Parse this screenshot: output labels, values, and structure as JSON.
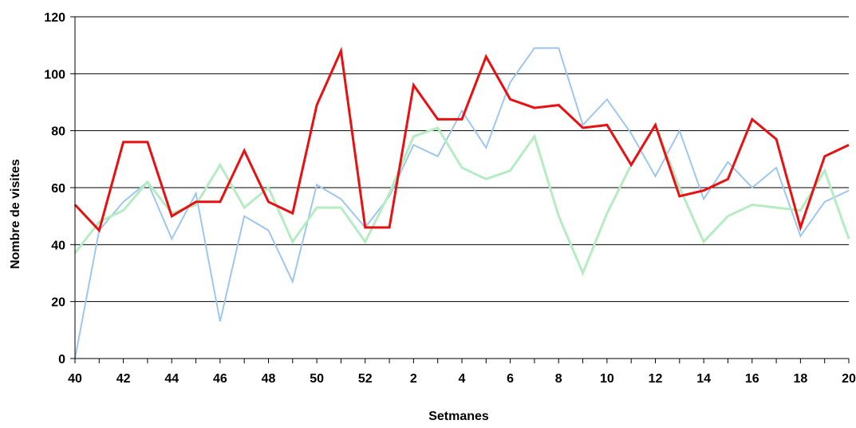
{
  "chart_data": {
    "type": "line",
    "title": "",
    "xlabel": "Setmanes",
    "ylabel": "Nombre de visites",
    "ylim": [
      0,
      120
    ],
    "yticks": [
      0,
      20,
      40,
      60,
      80,
      100,
      120
    ],
    "grid": "horizontal",
    "legend": "none",
    "categories": [
      "40",
      "41",
      "42",
      "43",
      "44",
      "45",
      "46",
      "47",
      "48",
      "49",
      "50",
      "51",
      "52",
      "1",
      "2",
      "3",
      "4",
      "5",
      "6",
      "7",
      "8",
      "9",
      "10",
      "11",
      "12",
      "13",
      "14",
      "15",
      "16",
      "17",
      "18",
      "19",
      "20"
    ],
    "x_tick_labels_shown": [
      "40",
      "42",
      "44",
      "46",
      "48",
      "50",
      "52",
      "2",
      "4",
      "6",
      "8",
      "10",
      "12",
      "14",
      "16",
      "18",
      "20"
    ],
    "series": [
      {
        "color": "#9ec7ef",
        "width": 2,
        "values": [
          0,
          45,
          55,
          62,
          42,
          58,
          13,
          50,
          45,
          27,
          61,
          56,
          46,
          57,
          75,
          71,
          87,
          74,
          97,
          109,
          109,
          82,
          91,
          79,
          64,
          80,
          56,
          69,
          60,
          67,
          43,
          55,
          59
        ]
      },
      {
        "color": "#b5ecc2",
        "width": 3,
        "values": [
          37,
          48,
          52,
          62,
          51,
          54,
          68,
          53,
          60,
          41,
          53,
          53,
          41,
          58,
          78,
          81,
          67,
          63,
          66,
          78,
          50,
          30,
          51,
          68,
          82,
          60,
          41,
          50,
          54,
          53,
          52,
          66,
          42
        ]
      },
      {
        "color": "#e81010",
        "width": 3,
        "values": [
          54,
          45,
          76,
          76,
          50,
          55,
          55,
          73,
          55,
          51,
          89,
          108,
          46,
          46,
          96,
          84,
          84,
          106,
          91,
          88,
          89,
          81,
          82,
          68,
          82,
          57,
          59,
          63,
          84,
          77,
          46,
          71,
          75
        ]
      }
    ]
  }
}
